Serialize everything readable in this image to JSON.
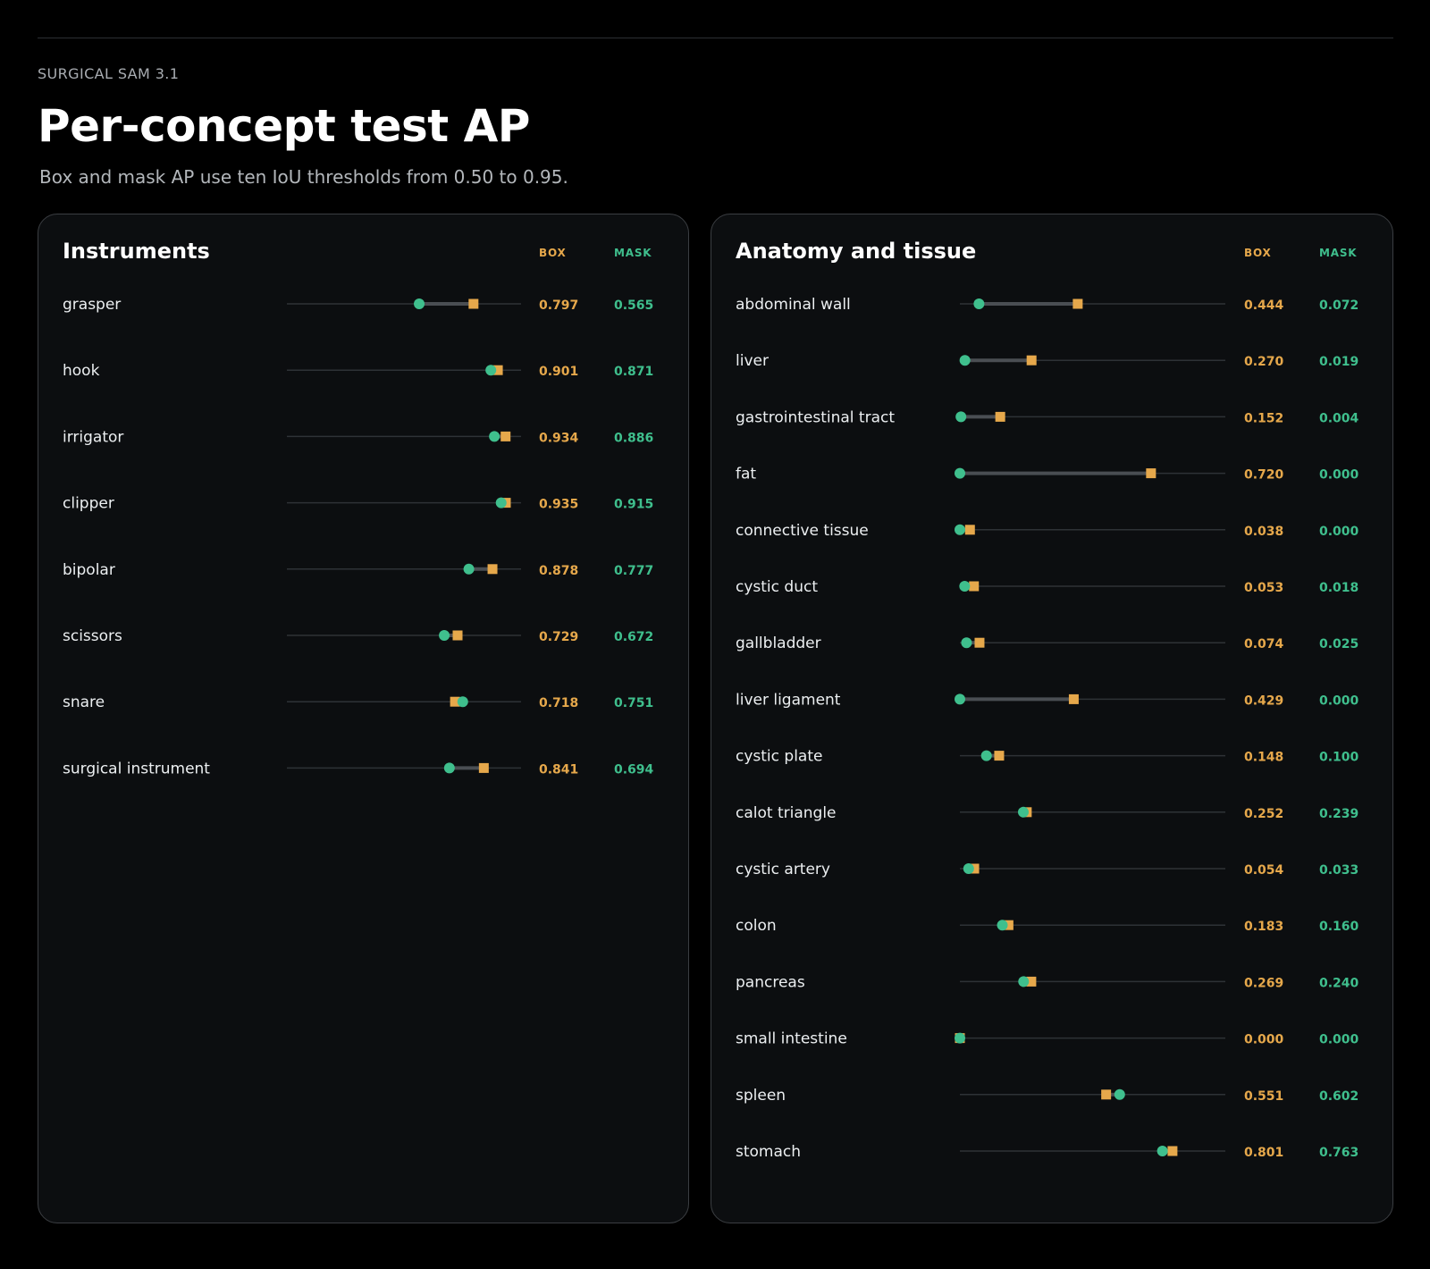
{
  "header": {
    "eyebrow": "SURGICAL SAM 3.1",
    "title": "Per-concept test AP",
    "subtitle": "Box and mask AP use ten IoU thresholds from 0.50 to 0.95."
  },
  "colors": {
    "box": "#e6a84b",
    "mask": "#3fbf8d",
    "track": "#2e3236",
    "connector": "#4a4e53"
  },
  "chart_data": [
    {
      "type": "dot-plot",
      "title": "Instruments",
      "box_label": "BOX",
      "mask_label": "MASK",
      "xlim": [
        0,
        1
      ],
      "categories": [
        "grasper",
        "hook",
        "irrigator",
        "clipper",
        "bipolar",
        "scissors",
        "snare",
        "surgical instrument"
      ],
      "series": [
        {
          "name": "BOX",
          "values": [
            0.797,
            0.901,
            0.934,
            0.935,
            0.878,
            0.729,
            0.718,
            0.841
          ]
        },
        {
          "name": "MASK",
          "values": [
            0.565,
            0.871,
            0.886,
            0.915,
            0.777,
            0.672,
            0.751,
            0.694
          ]
        }
      ],
      "box_text": [
        "0.797",
        "0.901",
        "0.934",
        "0.935",
        "0.878",
        "0.729",
        "0.718",
        "0.841"
      ],
      "mask_text": [
        "0.565",
        "0.871",
        "0.886",
        "0.915",
        "0.777",
        "0.672",
        "0.751",
        "0.694"
      ]
    },
    {
      "type": "dot-plot",
      "title": "Anatomy and tissue",
      "box_label": "BOX",
      "mask_label": "MASK",
      "xlim": [
        0,
        1
      ],
      "categories": [
        "abdominal wall",
        "liver",
        "gastrointestinal tract",
        "fat",
        "connective tissue",
        "cystic duct",
        "gallbladder",
        "liver ligament",
        "cystic plate",
        "calot triangle",
        "cystic artery",
        "colon",
        "pancreas",
        "small intestine",
        "spleen",
        "stomach"
      ],
      "series": [
        {
          "name": "BOX",
          "values": [
            0.444,
            0.27,
            0.152,
            0.72,
            0.038,
            0.053,
            0.074,
            0.429,
            0.148,
            0.252,
            0.054,
            0.183,
            0.269,
            0.0,
            0.551,
            0.801
          ]
        },
        {
          "name": "MASK",
          "values": [
            0.072,
            0.019,
            0.004,
            0.0,
            0.0,
            0.018,
            0.025,
            0.0,
            0.1,
            0.239,
            0.033,
            0.16,
            0.24,
            0.0,
            0.602,
            0.763
          ]
        }
      ],
      "box_text": [
        "0.444",
        "0.270",
        "0.152",
        "0.720",
        "0.038",
        "0.053",
        "0.074",
        "0.429",
        "0.148",
        "0.252",
        "0.054",
        "0.183",
        "0.269",
        "0.000",
        "0.551",
        "0.801"
      ],
      "mask_text": [
        "0.072",
        "0.019",
        "0.004",
        "0.000",
        "0.000",
        "0.018",
        "0.025",
        "0.000",
        "0.100",
        "0.239",
        "0.033",
        "0.160",
        "0.240",
        "0.000",
        "0.602",
        "0.763"
      ]
    }
  ]
}
